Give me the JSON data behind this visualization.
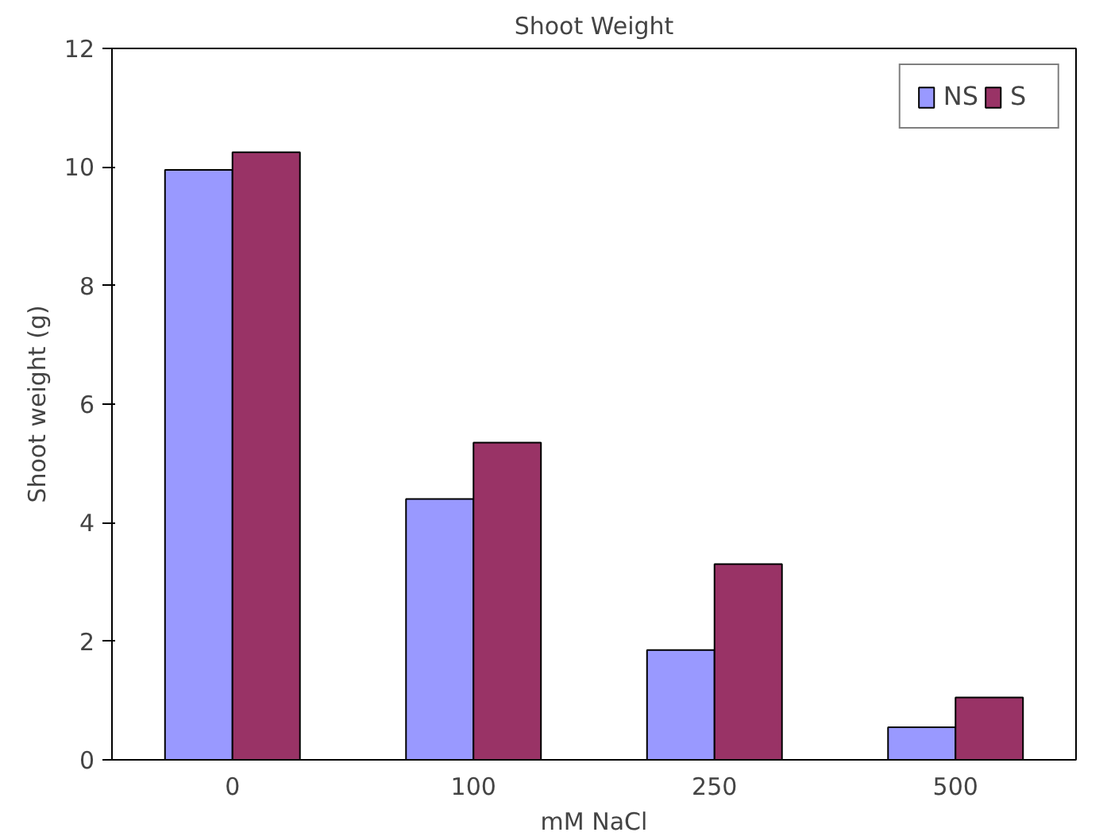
{
  "chart_data": {
    "type": "bar",
    "title": "Shoot Weight",
    "xlabel": "mM NaCl",
    "ylabel": "Shoot weight (g)",
    "categories": [
      "0",
      "100",
      "250",
      "500"
    ],
    "series": [
      {
        "name": "NS",
        "color": "#9999ff",
        "values": [
          9.95,
          4.4,
          1.85,
          0.55
        ]
      },
      {
        "name": "S",
        "color": "#993366",
        "values": [
          10.25,
          5.35,
          3.3,
          1.05
        ]
      }
    ],
    "ylim": [
      0,
      12
    ],
    "yticks": [
      0,
      2,
      4,
      6,
      8,
      10,
      12
    ],
    "grid": false,
    "legend": "top right"
  }
}
